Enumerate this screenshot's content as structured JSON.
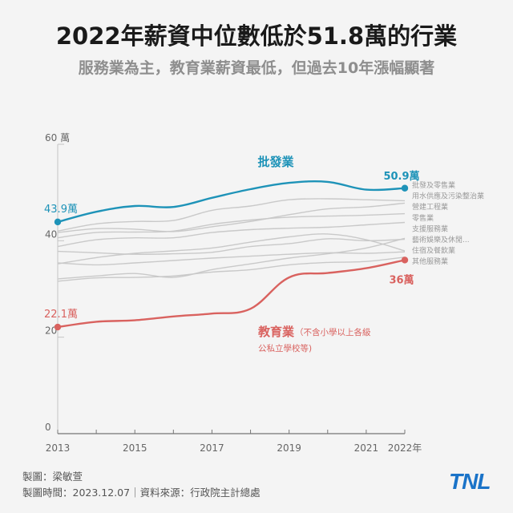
{
  "title": "2022年薪資中位數低於51.8萬的行業",
  "subtitle": "服務業為主，教育業薪資最低，但過去10年漲幅顯著",
  "credits": {
    "maker": "製圖：梁敏萱",
    "date_source": "製圖時間：2023.12.07｜資料來源：行政院主計總處"
  },
  "logo": "TNL",
  "colors": {
    "highlight_top": "#1e93b8",
    "highlight_bottom": "#d9625f",
    "others": "#c9c9c9",
    "axis": "#c4c4c4",
    "tick_text": "#666666",
    "background": "#f4f4f4"
  },
  "chart_data": {
    "type": "line",
    "x": [
      2013,
      2014,
      2015,
      2016,
      2017,
      2018,
      2019,
      2020,
      2021,
      2022
    ],
    "x_tick_labels": [
      "2013",
      "2015",
      "2017",
      "2019",
      "2021",
      "2022年"
    ],
    "x_tick_values": [
      2013,
      2015,
      2017,
      2019,
      2021,
      2022
    ],
    "y_tick_labels": [
      "0",
      "20",
      "40",
      "60 萬"
    ],
    "y_tick_values": [
      0,
      20,
      40,
      60
    ],
    "ylim": [
      0,
      60
    ],
    "unit": "萬",
    "series": [
      {
        "name": "批發及零售業",
        "role": "highlight_top",
        "label": "批發業",
        "values": [
          43.9,
          46.0,
          47.2,
          47.0,
          48.9,
          50.7,
          52.0,
          52.2,
          50.6,
          50.9
        ],
        "start_label": "43.9萬",
        "end_label": "50.9萬"
      },
      {
        "name": "教育業",
        "role": "highlight_bottom",
        "label": "教育業",
        "note_line1": "（不含小學以上各級",
        "note_line2": "公私立學校等)",
        "values": [
          22.1,
          23.2,
          23.5,
          24.3,
          24.9,
          25.9,
          32.4,
          33.3,
          34.3,
          36.0
        ],
        "start_label": "22.1萬",
        "end_label": "36萬"
      },
      {
        "name": "用水供應及污染整治業",
        "role": "other",
        "values": [
          42.0,
          43.5,
          44.0,
          44.2,
          46.3,
          47.2,
          48.5,
          48.7,
          48.5,
          48.3
        ]
      },
      {
        "name": "營建工程業",
        "role": "other",
        "values": [
          41.7,
          42.5,
          42.4,
          41.9,
          42.9,
          44.0,
          45.4,
          46.6,
          47.0,
          47.8
        ]
      },
      {
        "name": "零售業",
        "role": "other",
        "values": [
          40.6,
          41.7,
          41.8,
          42.0,
          43.4,
          44.3,
          44.9,
          45.1,
          45.3,
          45.6
        ]
      },
      {
        "name": "支援服務業",
        "role": "other",
        "values": [
          38.8,
          40.2,
          40.6,
          40.6,
          41.7,
          42.3,
          42.6,
          42.8,
          43.3,
          43.8
        ]
      },
      {
        "name": "藝術娛樂及休閒...",
        "role": "other",
        "values": [
          37.8,
          37.5,
          37.2,
          37.3,
          37.6,
          38.8,
          39.4,
          40.4,
          40.0,
          40.3
        ]
      },
      {
        "name": "住宿及餐飲業",
        "role": "other",
        "values": [
          35.2,
          36.5,
          37.4,
          37.9,
          38.5,
          39.7,
          40.8,
          41.4,
          40.2,
          37.9
        ]
      },
      {
        "name": "其他服務業",
        "role": "other",
        "values": [
          32.1,
          32.7,
          33.2,
          32.4,
          34.0,
          35.2,
          36.4,
          37.3,
          38.5,
          40.5
        ]
      },
      {
        "name": "其他服務業(2)",
        "role": "other",
        "hide_label": true,
        "values": [
          31.6,
          32.3,
          32.4,
          32.7,
          33.5,
          34.0,
          35.0,
          35.5,
          35.7,
          36.6
        ]
      },
      {
        "name": "其他服務業(3)",
        "role": "other",
        "hide_label": true,
        "values": [
          35.4,
          35.0,
          35.4,
          35.9,
          36.4,
          36.8,
          37.2,
          37.5,
          37.4,
          37.7
        ]
      }
    ],
    "other_labels": [
      "批發及零售業",
      "用水供應及污染整治業",
      "營建工程業",
      "零售業",
      "支援服務業",
      "藝術娛樂及休閒...",
      "住宿及餐飲業",
      "其他服務業"
    ]
  }
}
